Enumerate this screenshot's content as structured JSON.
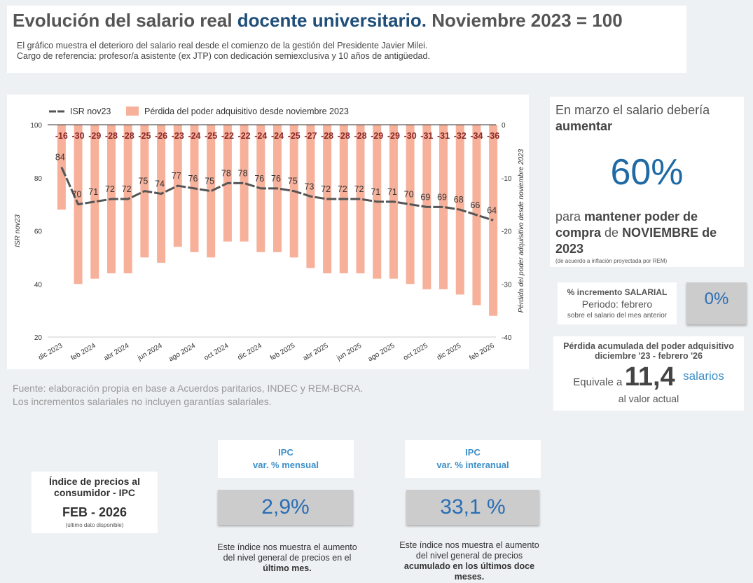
{
  "header": {
    "title_a": "Evolución del salario real ",
    "title_b": "docente universitario.",
    "title_c": " Noviembre 2023 = 100",
    "sub1": "El gráfico muestra el deterioro del salario real desde el comienzo de la gestión del Presidente Javier Milei.",
    "sub2": "Cargo de referencia: profesor/a asistente (ex JTP) con dedicación semiexclusiva y 10 años de antigüedad."
  },
  "chart_data": {
    "type": "bar+line",
    "categories": [
      "dic 2023",
      "ene 2024",
      "feb 2024",
      "mar 2024",
      "abr 2024",
      "may 2024",
      "jun 2024",
      "jul 2024",
      "ago 2024",
      "sep 2024",
      "oct 2024",
      "nov 2024",
      "dic 2024",
      "ene 2025",
      "feb 2025",
      "mar 2025",
      "abr 2025",
      "may 2025",
      "jun 2025",
      "jul 2025",
      "ago 2025",
      "sep 2025",
      "oct 2025",
      "nov 2025",
      "dic 2025",
      "ene 2026",
      "feb 2026"
    ],
    "tick_labels": [
      "dic 2023",
      "feb 2024",
      "abr 2024",
      "jun 2024",
      "ago 2024",
      "oct 2024",
      "dic 2024",
      "feb 2025",
      "abr 2025",
      "jun 2025",
      "ago 2025",
      "oct 2025",
      "dic 2025",
      "feb 2026"
    ],
    "series": [
      {
        "name": "ISR nov23",
        "type": "line",
        "axis": "left",
        "color": "#555555",
        "values": [
          84,
          70,
          71,
          72,
          72,
          75,
          74,
          77,
          76,
          75,
          78,
          78,
          76,
          76,
          75,
          73,
          72,
          72,
          72,
          71,
          71,
          70,
          69,
          69,
          68,
          66,
          64
        ]
      },
      {
        "name": "Pérdida del poder adquisitivo desde noviembre 2023",
        "type": "bar",
        "axis": "right",
        "color": "#f7b09a",
        "values": [
          -16,
          -30,
          -29,
          -28,
          -28,
          -25,
          -26,
          -23,
          -24,
          -25,
          -22,
          -22,
          -24,
          -24,
          -25,
          -27,
          -28,
          -28,
          -28,
          -29,
          -29,
          -30,
          -31,
          -31,
          -32,
          -34,
          -36
        ]
      }
    ],
    "ylabel_left": "ISR nov23",
    "ylim_left": [
      20,
      100
    ],
    "yticks_left": [
      100,
      80,
      60,
      40,
      20
    ],
    "ylabel_right": "Pérdida del poder adquisitivo desde noviembre 2023",
    "ylim_right": [
      -40,
      0
    ],
    "yticks_right": [
      0,
      -10,
      -20,
      -30,
      -40
    ],
    "legend": "top-left",
    "grid": false,
    "bar_label_color": "#8b2a2a"
  },
  "source": {
    "l1": "Fuente: elaboración propia en base a Acuerdos paritarios, INDEC y REM-BCRA.",
    "l2": "Los incrementos salariales no incluyen garantías salariales."
  },
  "right": {
    "l1": "En marzo el salario debería",
    "l2": "aumentar",
    "pct": "60%",
    "l3a": "para ",
    "l3b": "mantener poder de",
    "l4a": "compra",
    "l4b": " de ",
    "l4c": "NOVIEMBRE de",
    "l5": "2023",
    "note": "(de acuerdo a inflación proyectada por REM)",
    "inc_title": "% incremento SALARIAL",
    "inc_period": "Periodo: febrero",
    "inc_note": "sobre el salario del mes anterior",
    "inc_value": "0%",
    "loss_title1": "Pérdida acumulada del poder adquisitivo",
    "loss_title2": "diciembre '23 - febrero '26",
    "loss_pre": "Equivale a",
    "loss_value": "11,4",
    "loss_unit": "salarios",
    "loss_post": "al valor actual"
  },
  "ipc": {
    "title1": "Índice de precios al",
    "title2": "consumidor - IPC",
    "period": "FEB - 2026",
    "note": "(último dato disponible)",
    "m_h1": "IPC",
    "m_h2": "var. % mensual",
    "m_val": "2,9%",
    "m_d1": "Este índice nos muestra el aumento",
    "m_d2": "del nivel general de precios en el",
    "m_d3": "último mes.",
    "a_h1": "IPC",
    "a_h2": "var. % interanual",
    "a_val": "33,1 %",
    "a_d1": "Este índice nos muestra el aumento",
    "a_d2": "del nivel general de precios",
    "a_d3": "acumulado en los últimos doce",
    "a_d4": "meses."
  }
}
